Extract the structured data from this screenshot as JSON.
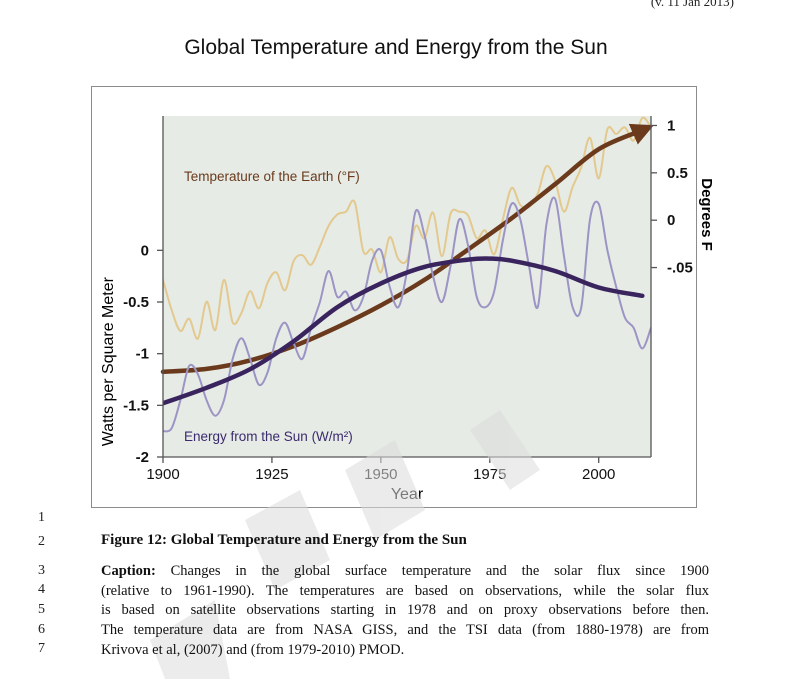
{
  "page": {
    "version": "(v. 11 Jan 2013)",
    "line_numbers": [
      "1",
      "2",
      "3",
      "4",
      "5",
      "6",
      "7"
    ]
  },
  "figure": {
    "title": "Figure 12: Global Temperature and Energy from the Sun",
    "caption_label": "Caption:",
    "caption_lines": [
      "Changes in the global surface temperature and the solar flux since 1900",
      "(relative to 1961-1990). The temperatures are based on observations, while the solar flux",
      "is based on satellite observations starting in 1978 and on proxy observations before then.",
      "The temperature data are from NASA GISS, and the TSI data (from 1880-1978) are from",
      "Krivova et al, (2007) and (from 1979-2010) PMOD."
    ]
  },
  "chart_data": {
    "type": "line",
    "title": "Global Temperature and Energy from the Sun",
    "xlabel": "Year",
    "ylabel_left": "Watts per Square Meter",
    "ylabel_right": "Degrees F",
    "xlim": [
      1900,
      2012
    ],
    "x_ticks": [
      "1900",
      "1925",
      "1950",
      "1975",
      "2000"
    ],
    "x_tick_values": [
      1900,
      1925,
      1950,
      1975,
      2000
    ],
    "ylim_left": [
      -2,
      1.3
    ],
    "y_left_ticks": [
      "0",
      "-0.5",
      "-1",
      "-1.5",
      "-2"
    ],
    "y_left_tick_values": [
      0,
      -0.5,
      -1,
      -1.5,
      -2
    ],
    "y_right_ticks": [
      "1",
      "0.5",
      "0",
      "-.05"
    ],
    "y_right_tick_values": [
      1,
      0.5,
      0,
      -0.5
    ],
    "ylim_right": [
      -2.5,
      1.1
    ],
    "grid": false,
    "background_color": "#e6ebe6",
    "annotations": [
      {
        "text": "Temperature of the Earth (°F)",
        "color": "#6b3a1c"
      },
      {
        "text": "Energy from the Sun (W/m²)",
        "color": "#3b2a6e"
      }
    ],
    "series": [
      {
        "name": "Temperature of the Earth (°F)",
        "axis": "right",
        "color": "#e3c98e",
        "x": [
          1900,
          1902,
          1904,
          1906,
          1908,
          1910,
          1912,
          1914,
          1916,
          1918,
          1920,
          1922,
          1924,
          1926,
          1928,
          1930,
          1932,
          1934,
          1936,
          1938,
          1940,
          1942,
          1944,
          1946,
          1948,
          1950,
          1952,
          1954,
          1956,
          1958,
          1960,
          1962,
          1964,
          1966,
          1968,
          1970,
          1972,
          1974,
          1976,
          1978,
          1980,
          1982,
          1984,
          1986,
          1988,
          1990,
          1992,
          1994,
          1996,
          1998,
          2000,
          2002,
          2004,
          2006,
          2008,
          2010,
          2012
        ],
        "values": [
          -0.63,
          -0.95,
          -1.17,
          -1.04,
          -1.25,
          -0.86,
          -1.16,
          -0.63,
          -1.08,
          -0.98,
          -0.75,
          -0.93,
          -0.66,
          -0.55,
          -0.74,
          -0.43,
          -0.37,
          -0.47,
          -0.28,
          -0.06,
          0.06,
          0.09,
          0.19,
          -0.33,
          -0.31,
          -0.55,
          -0.18,
          -0.41,
          -0.42,
          -0.06,
          -0.19,
          0.08,
          -0.38,
          0.07,
          0.09,
          0.05,
          -0.19,
          -0.11,
          -0.36,
          0.01,
          0.34,
          0.16,
          0.14,
          0.28,
          0.57,
          0.42,
          0.09,
          0.35,
          0.56,
          0.87,
          0.44,
          0.96,
          0.91,
          0.98,
          0.84,
          1.08,
          0.98
        ]
      },
      {
        "name": "Temperature trend",
        "axis": "right",
        "color": "#6b3a1c",
        "x": [
          1900,
          1910,
          1920,
          1930,
          1940,
          1950,
          1960,
          1970,
          1980,
          1990,
          2000,
          2010
        ],
        "values": [
          -1.6,
          -1.57,
          -1.48,
          -1.33,
          -1.13,
          -0.9,
          -0.63,
          -0.31,
          0.02,
          0.38,
          0.75,
          0.95
        ]
      },
      {
        "name": "Energy from the Sun (W/m²)",
        "axis": "left",
        "color": "#9b94c4",
        "x": [
          1900,
          1902,
          1904,
          1906,
          1908,
          1910,
          1912,
          1914,
          1916,
          1918,
          1920,
          1922,
          1924,
          1926,
          1928,
          1930,
          1932,
          1934,
          1936,
          1938,
          1940,
          1942,
          1944,
          1946,
          1948,
          1950,
          1952,
          1954,
          1956,
          1958,
          1960,
          1962,
          1964,
          1966,
          1968,
          1970,
          1972,
          1974,
          1976,
          1978,
          1980,
          1982,
          1984,
          1986,
          1988,
          1990,
          1992,
          1994,
          1996,
          1998,
          2000,
          2002,
          2004,
          2006,
          2008,
          2010,
          2012
        ],
        "values": [
          -1.75,
          -1.72,
          -1.45,
          -1.12,
          -1.2,
          -1.45,
          -1.6,
          -1.45,
          -1.05,
          -0.85,
          -1.05,
          -1.3,
          -1.18,
          -0.85,
          -0.7,
          -0.9,
          -1.05,
          -0.75,
          -0.5,
          -0.2,
          -0.45,
          -0.4,
          -0.58,
          -0.45,
          -0.1,
          0.0,
          -0.35,
          -0.55,
          -0.2,
          0.38,
          0.15,
          -0.25,
          -0.5,
          -0.15,
          0.3,
          0.05,
          -0.45,
          -0.55,
          -0.4,
          0.1,
          0.45,
          0.3,
          -0.15,
          -0.55,
          0.25,
          0.5,
          -0.05,
          -0.55,
          -0.55,
          0.3,
          0.45,
          0.0,
          -0.35,
          -0.65,
          -0.75,
          -0.95,
          -0.75
        ]
      },
      {
        "name": "Solar trend",
        "axis": "left",
        "color": "#3a245e",
        "x": [
          1900,
          1910,
          1920,
          1930,
          1940,
          1950,
          1960,
          1970,
          1975,
          1980,
          1990,
          2000,
          2010
        ],
        "values": [
          -1.48,
          -1.33,
          -1.15,
          -0.88,
          -0.55,
          -0.32,
          -0.16,
          -0.09,
          -0.08,
          -0.1,
          -0.2,
          -0.36,
          -0.44
        ]
      }
    ]
  }
}
